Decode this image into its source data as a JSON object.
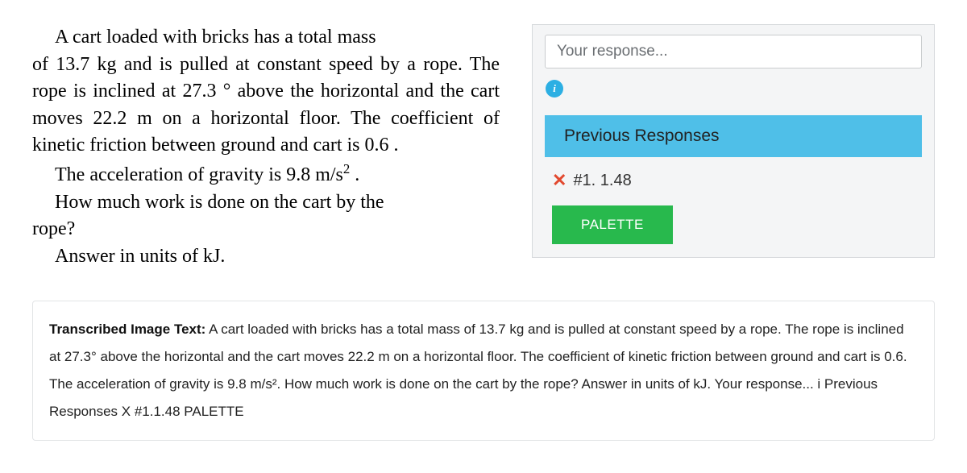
{
  "problem": {
    "p1_prefix_indent": "A cart loaded with bricks has a total mass ",
    "p1_rest": "of 13.7 kg and is pulled at constant speed by a rope. The rope is inclined at 27.3 ° above the horizontal and the cart moves 22.2 m on a horizontal floor. The coefficient of kinetic friction between ground and cart is 0.6 .",
    "p2_indent": "The acceleration of gravity is 9.8 m/s",
    "p2_sup": "2",
    "p2_after": " .",
    "p3_indent": "How much work is done on the cart by the ",
    "p3_rest": "rope?",
    "p4_indent": "Answer in units of kJ."
  },
  "panel": {
    "placeholder": "Your response...",
    "info_glyph": "i",
    "prev_header": "Previous Responses",
    "x_glyph": "✕",
    "response_1": "#1. 1.48",
    "palette_label": "PALETTE"
  },
  "transcribed": {
    "label": "Transcribed Image Text:",
    "text": "  A cart loaded with bricks has a total mass of 13.7 kg and is pulled at constant speed by a rope. The rope is inclined at 27.3° above the horizontal and the cart moves 22.2 m on a horizontal floor. The coefficient of kinetic friction between ground and cart is 0.6. The acceleration of gravity is 9.8 m/s². How much work is done on the cart by the rope? Answer in units of kJ. Your response... i Previous Responses X #1.1.48 PALETTE"
  },
  "colors": {
    "panel_bg": "#f4f5f6",
    "info_bg": "#2cafe3",
    "prev_header_bg": "#4fbfe8",
    "x_color": "#e2492f",
    "palette_bg": "#28b94d"
  }
}
